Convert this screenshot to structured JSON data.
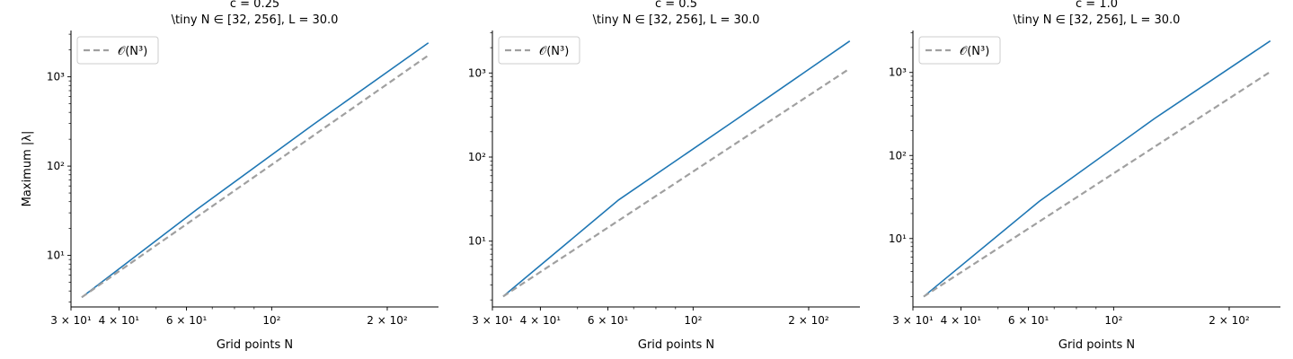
{
  "chart_data": [
    {
      "type": "line",
      "title": "c = 0.25",
      "subtitle": "\\tiny N ∈ [32, 256], L = 30.0",
      "xlabel": "Grid points N",
      "ylabel": "Maximum |λ|",
      "xscale": "log",
      "yscale": "log",
      "xlim": [
        30,
        272
      ],
      "ylim": [
        2.65,
        3300
      ],
      "x_ticks": [
        30,
        40,
        60,
        100,
        200
      ],
      "x_tick_labels": [
        "3 × 10¹",
        "4 × 10¹",
        "6 × 10¹",
        "10²",
        "2 × 10²"
      ],
      "y_ticks": [
        10,
        100,
        1000
      ],
      "y_tick_labels": [
        "10¹",
        "10²",
        "10³"
      ],
      "legend": {
        "position": "top-left",
        "entries": [
          "𝒪(N³)"
        ]
      },
      "grid": false,
      "series": [
        {
          "color": "#1f77b4",
          "style": "solid",
          "x": [
            32,
            64,
            128,
            256
          ],
          "y": [
            3.4,
            33,
            290,
            2400
          ]
        },
        {
          "name": "𝒪(N³)",
          "color": "#a0a0a0",
          "style": "dashed",
          "x": [
            32,
            256
          ],
          "y": [
            3.4,
            1740
          ]
        }
      ]
    },
    {
      "type": "line",
      "title": "c = 0.5",
      "subtitle": "\\tiny N ∈ [32, 256], L = 30.0",
      "xlabel": "Grid points N",
      "ylabel": "",
      "xscale": "log",
      "yscale": "log",
      "xlim": [
        30,
        272
      ],
      "ylim": [
        1.65,
        3200
      ],
      "x_ticks": [
        30,
        40,
        60,
        100,
        200
      ],
      "x_tick_labels": [
        "3 × 10¹",
        "4 × 10¹",
        "6 × 10¹",
        "10²",
        "2 × 10²"
      ],
      "y_ticks": [
        10,
        100,
        1000
      ],
      "y_tick_labels": [
        "10¹",
        "10²",
        "10³"
      ],
      "legend": {
        "position": "top-left",
        "entries": [
          "𝒪(N³)"
        ]
      },
      "grid": false,
      "series": [
        {
          "color": "#1f77b4",
          "style": "solid",
          "x": [
            32,
            64,
            128,
            256
          ],
          "y": [
            2.2,
            31,
            270,
            2400
          ]
        },
        {
          "name": "𝒪(N³)",
          "color": "#a0a0a0",
          "style": "dashed",
          "x": [
            32,
            256
          ],
          "y": [
            2.2,
            1130
          ]
        }
      ]
    },
    {
      "type": "line",
      "title": "c = 1.0",
      "subtitle": "\\tiny N ∈ [32, 256], L = 30.0",
      "xlabel": "Grid points N",
      "ylabel": "",
      "xscale": "log",
      "yscale": "log",
      "xlim": [
        30,
        272
      ],
      "ylim": [
        1.5,
        3200
      ],
      "x_ticks": [
        30,
        40,
        60,
        100,
        200
      ],
      "x_tick_labels": [
        "3 × 10¹",
        "4 × 10¹",
        "6 × 10¹",
        "10²",
        "2 × 10²"
      ],
      "y_ticks": [
        10,
        100,
        1000
      ],
      "y_tick_labels": [
        "10¹",
        "10²",
        "10³"
      ],
      "legend": {
        "position": "top-left",
        "entries": [
          "𝒪(N³)"
        ]
      },
      "grid": false,
      "series": [
        {
          "color": "#1f77b4",
          "style": "solid",
          "x": [
            32,
            64,
            128,
            256
          ],
          "y": [
            2.0,
            28,
            280,
            2400
          ]
        },
        {
          "name": "𝒪(N³)",
          "color": "#a0a0a0",
          "style": "dashed",
          "x": [
            32,
            256
          ],
          "y": [
            2.0,
            1020
          ]
        }
      ]
    }
  ]
}
